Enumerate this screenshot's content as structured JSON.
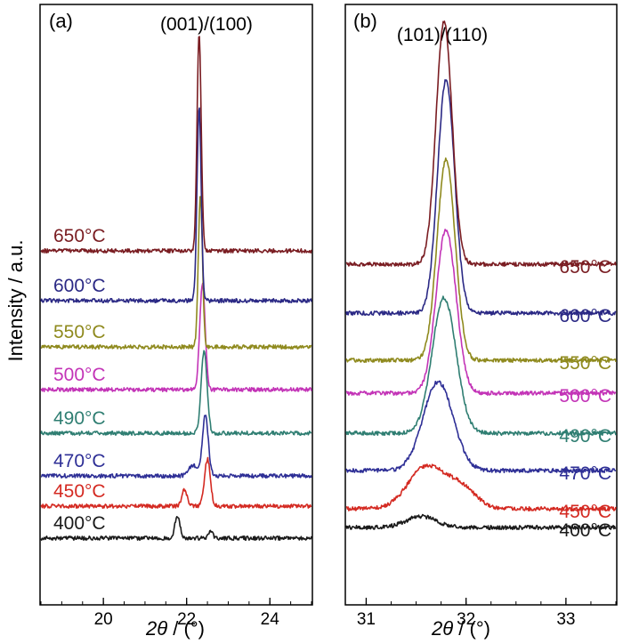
{
  "chart_data": [
    {
      "panel_label": "(a)",
      "type": "line",
      "title": "",
      "peak_label": "(001)/(100)",
      "xlabel_var": "2θ",
      "xlabel_unit": "(°)",
      "ylabel": "Intensity / a.u.",
      "xlim": [
        18.5,
        25
      ],
      "xticks": [
        "20",
        "22",
        "24"
      ],
      "series": [
        {
          "name": "400°C",
          "color": "#1a1a1a",
          "peaks": [
            {
              "x": 21.78,
              "h": 0.3,
              "w": 0.06
            },
            {
              "x": 22.58,
              "h": 0.1,
              "w": 0.05
            }
          ]
        },
        {
          "name": "450°C",
          "color": "#d42a22",
          "peaks": [
            {
              "x": 21.95,
              "h": 0.22,
              "w": 0.06
            },
            {
              "x": 22.5,
              "h": 0.62,
              "w": 0.07
            }
          ]
        },
        {
          "name": "470°C",
          "color": "#2e2f96",
          "peaks": [
            {
              "x": 22.15,
              "h": 0.14,
              "w": 0.1
            },
            {
              "x": 22.45,
              "h": 0.8,
              "w": 0.07
            }
          ]
        },
        {
          "name": "490°C",
          "color": "#2f7e72",
          "peaks": [
            {
              "x": 22.42,
              "h": 1.1,
              "w": 0.07
            }
          ]
        },
        {
          "name": "500°C",
          "color": "#c334b7",
          "peaks": [
            {
              "x": 22.38,
              "h": 1.4,
              "w": 0.065
            }
          ]
        },
        {
          "name": "550°C",
          "color": "#8f8a1e",
          "peaks": [
            {
              "x": 22.33,
              "h": 2.0,
              "w": 0.05
            }
          ]
        },
        {
          "name": "600°C",
          "color": "#2b2985",
          "peaks": [
            {
              "x": 22.3,
              "h": 2.55,
              "w": 0.05
            }
          ]
        },
        {
          "name": "650°C",
          "color": "#7a1d22",
          "peaks": [
            {
              "x": 22.3,
              "h": 2.85,
              "w": 0.05
            }
          ]
        }
      ]
    },
    {
      "panel_label": "(b)",
      "type": "line",
      "title": "",
      "peak_label": "(101)/(110)",
      "xlabel_var": "2θ",
      "xlabel_unit": "(°)",
      "xlim": [
        30.8,
        33.5
      ],
      "xticks": [
        "31",
        "32",
        "33"
      ],
      "series": [
        {
          "name": "400°C",
          "color": "#1a1a1a",
          "peaks": [
            {
              "x": 31.55,
              "h": 0.12,
              "w": 0.15
            }
          ]
        },
        {
          "name": "450°C",
          "color": "#d42a22",
          "peaks": [
            {
              "x": 31.6,
              "h": 0.45,
              "w": 0.18
            },
            {
              "x": 31.95,
              "h": 0.22,
              "w": 0.15
            }
          ]
        },
        {
          "name": "470°C",
          "color": "#2e2f96",
          "peaks": [
            {
              "x": 31.72,
              "h": 0.95,
              "w": 0.15
            }
          ]
        },
        {
          "name": "490°C",
          "color": "#2f7e72",
          "peaks": [
            {
              "x": 31.78,
              "h": 1.45,
              "w": 0.12
            }
          ]
        },
        {
          "name": "500°C",
          "color": "#c334b7",
          "peaks": [
            {
              "x": 31.8,
              "h": 1.75,
              "w": 0.1
            }
          ]
        },
        {
          "name": "550°C",
          "color": "#8f8a1e",
          "peaks": [
            {
              "x": 31.8,
              "h": 2.15,
              "w": 0.09
            }
          ]
        },
        {
          "name": "600°C",
          "color": "#2b2985",
          "peaks": [
            {
              "x": 31.8,
              "h": 2.5,
              "w": 0.085
            }
          ]
        },
        {
          "name": "650°C",
          "color": "#7a1d22",
          "peaks": [
            {
              "x": 31.78,
              "h": 2.6,
              "w": 0.08
            }
          ]
        }
      ]
    }
  ]
}
